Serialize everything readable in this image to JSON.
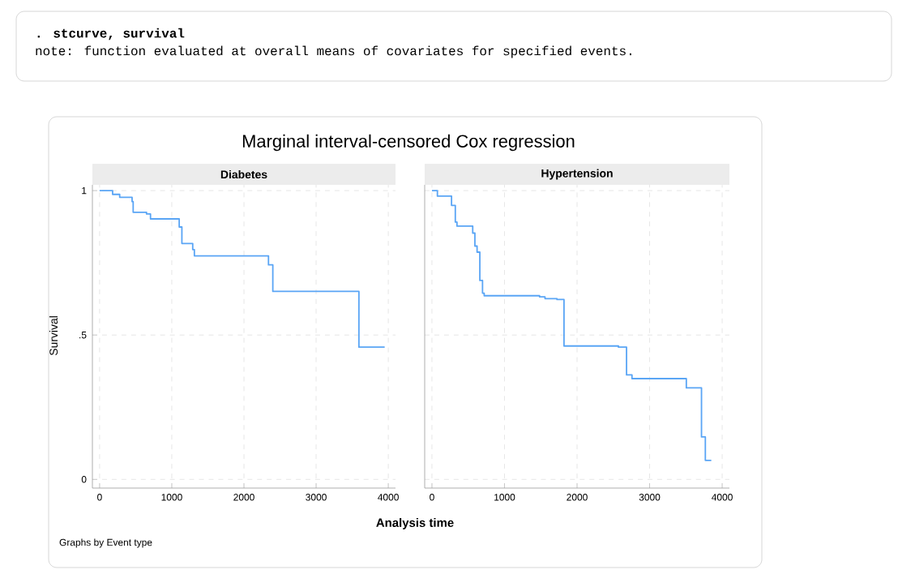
{
  "chart_data": [
    {
      "type": "step",
      "title": "Marginal interval-censored Cox regression",
      "subtitle": "Diabetes",
      "xlabel": "Analysis time",
      "ylabel": "Survival",
      "annotations": [
        ". stcurve, survival",
        "note: function evaluated at overall means of covariates for specified events.",
        "Graphs by Event type"
      ],
      "x": [
        0,
        180,
        278,
        450,
        465,
        650,
        705,
        1103,
        1140,
        1290,
        1313,
        2340,
        2400,
        3593,
        3950
      ],
      "series": [
        {
          "color": "#5aa5f5",
          "values": [
            1,
            0.987,
            0.977,
            0.962,
            0.925,
            0.919,
            0.902,
            0.874,
            0.817,
            0.796,
            0.774,
            0.743,
            0.651,
            0.458,
            0.458
          ]
        }
      ],
      "xlim": [
        -100,
        4100
      ],
      "ylim": [
        -0.03,
        1.02
      ],
      "xticks": [
        0,
        1000,
        2000,
        3000,
        4000
      ],
      "yticks": [
        0,
        {
          "value": 0.5,
          "label": ".5"
        },
        1
      ],
      "grid": true
    },
    {
      "type": "step",
      "subtitle": "Hypertension",
      "x": [
        0,
        75,
        270,
        322,
        345,
        562,
        592,
        622,
        660,
        697,
        720,
        1483,
        1558,
        1723,
        1820,
        2570,
        2682,
        2757,
        3506,
        3715,
        3768,
        3850
      ],
      "series": [
        {
          "color": "#5aa5f5",
          "values": [
            1,
            0.981,
            0.949,
            0.891,
            0.877,
            0.853,
            0.808,
            0.787,
            0.689,
            0.645,
            0.636,
            0.632,
            0.626,
            0.623,
            0.462,
            0.458,
            0.362,
            0.349,
            0.317,
            0.147,
            0.066,
            0.066
          ]
        }
      ],
      "xlim": [
        -100,
        4100
      ],
      "ylim": [
        -0.03,
        1.02
      ],
      "xticks": [
        0,
        1000,
        2000,
        3000,
        4000
      ],
      "yticks": [
        0,
        {
          "value": 0.5,
          "label": null
        },
        1
      ],
      "grid": true,
      "tick_labels": "x"
    }
  ]
}
